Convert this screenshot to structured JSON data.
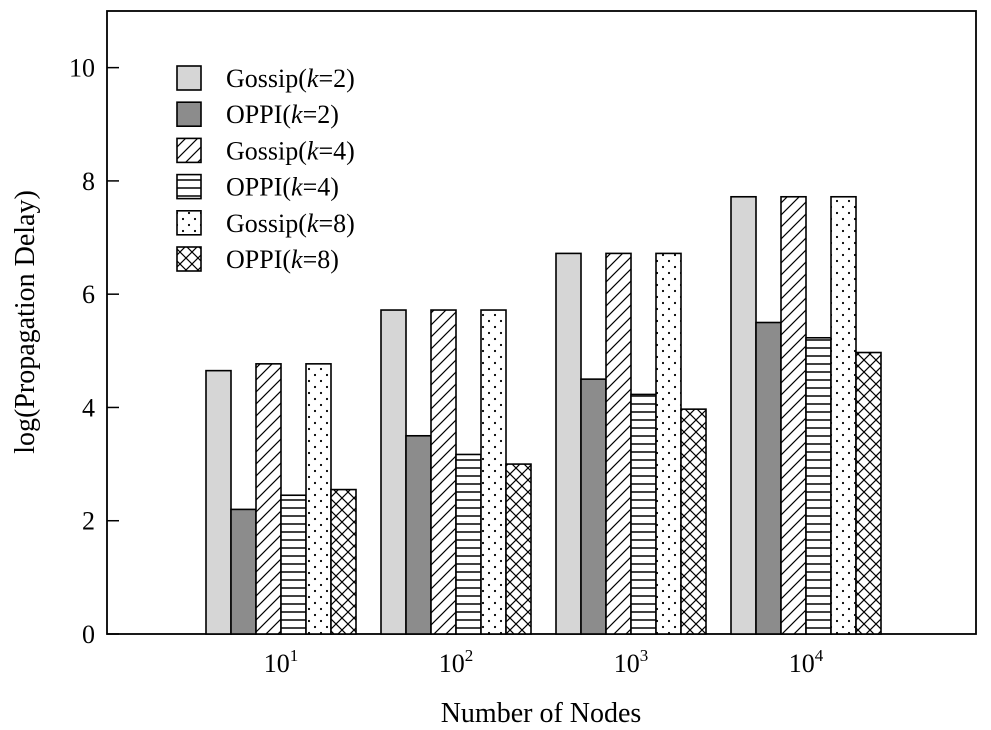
{
  "chart_data": {
    "type": "bar",
    "xlabel": "Number of Nodes",
    "ylabel": "log(Propagation Delay)",
    "ylim": [
      0,
      11
    ],
    "yticks": [
      0,
      2,
      4,
      6,
      8,
      10
    ],
    "categories": [
      {
        "base": "10",
        "exp": "1"
      },
      {
        "base": "10",
        "exp": "2"
      },
      {
        "base": "10",
        "exp": "3"
      },
      {
        "base": "10",
        "exp": "4"
      }
    ],
    "legend_position": "top-left",
    "series": [
      {
        "name": "Gossip",
        "k": "2",
        "fill": "light-gray",
        "values": [
          4.65,
          5.72,
          6.72,
          7.72
        ]
      },
      {
        "name": "OPPI",
        "k": "2",
        "fill": "dark-gray",
        "values": [
          2.2,
          3.5,
          4.5,
          5.5
        ]
      },
      {
        "name": "Gossip",
        "k": "4",
        "fill": "diagonal-hatch",
        "values": [
          4.77,
          5.72,
          6.72,
          7.72
        ]
      },
      {
        "name": "OPPI",
        "k": "4",
        "fill": "horizontal-lines",
        "values": [
          2.45,
          3.17,
          4.23,
          5.23
        ]
      },
      {
        "name": "Gossip",
        "k": "8",
        "fill": "dotted",
        "values": [
          4.77,
          5.72,
          6.72,
          7.72
        ]
      },
      {
        "name": "OPPI",
        "k": "8",
        "fill": "cross-hatch",
        "values": [
          2.55,
          3.0,
          3.97,
          4.97
        ]
      }
    ],
    "colors": {
      "light_gray": "#d6d6d6",
      "dark_gray": "#8c8c8c",
      "stroke": "#000000"
    }
  }
}
